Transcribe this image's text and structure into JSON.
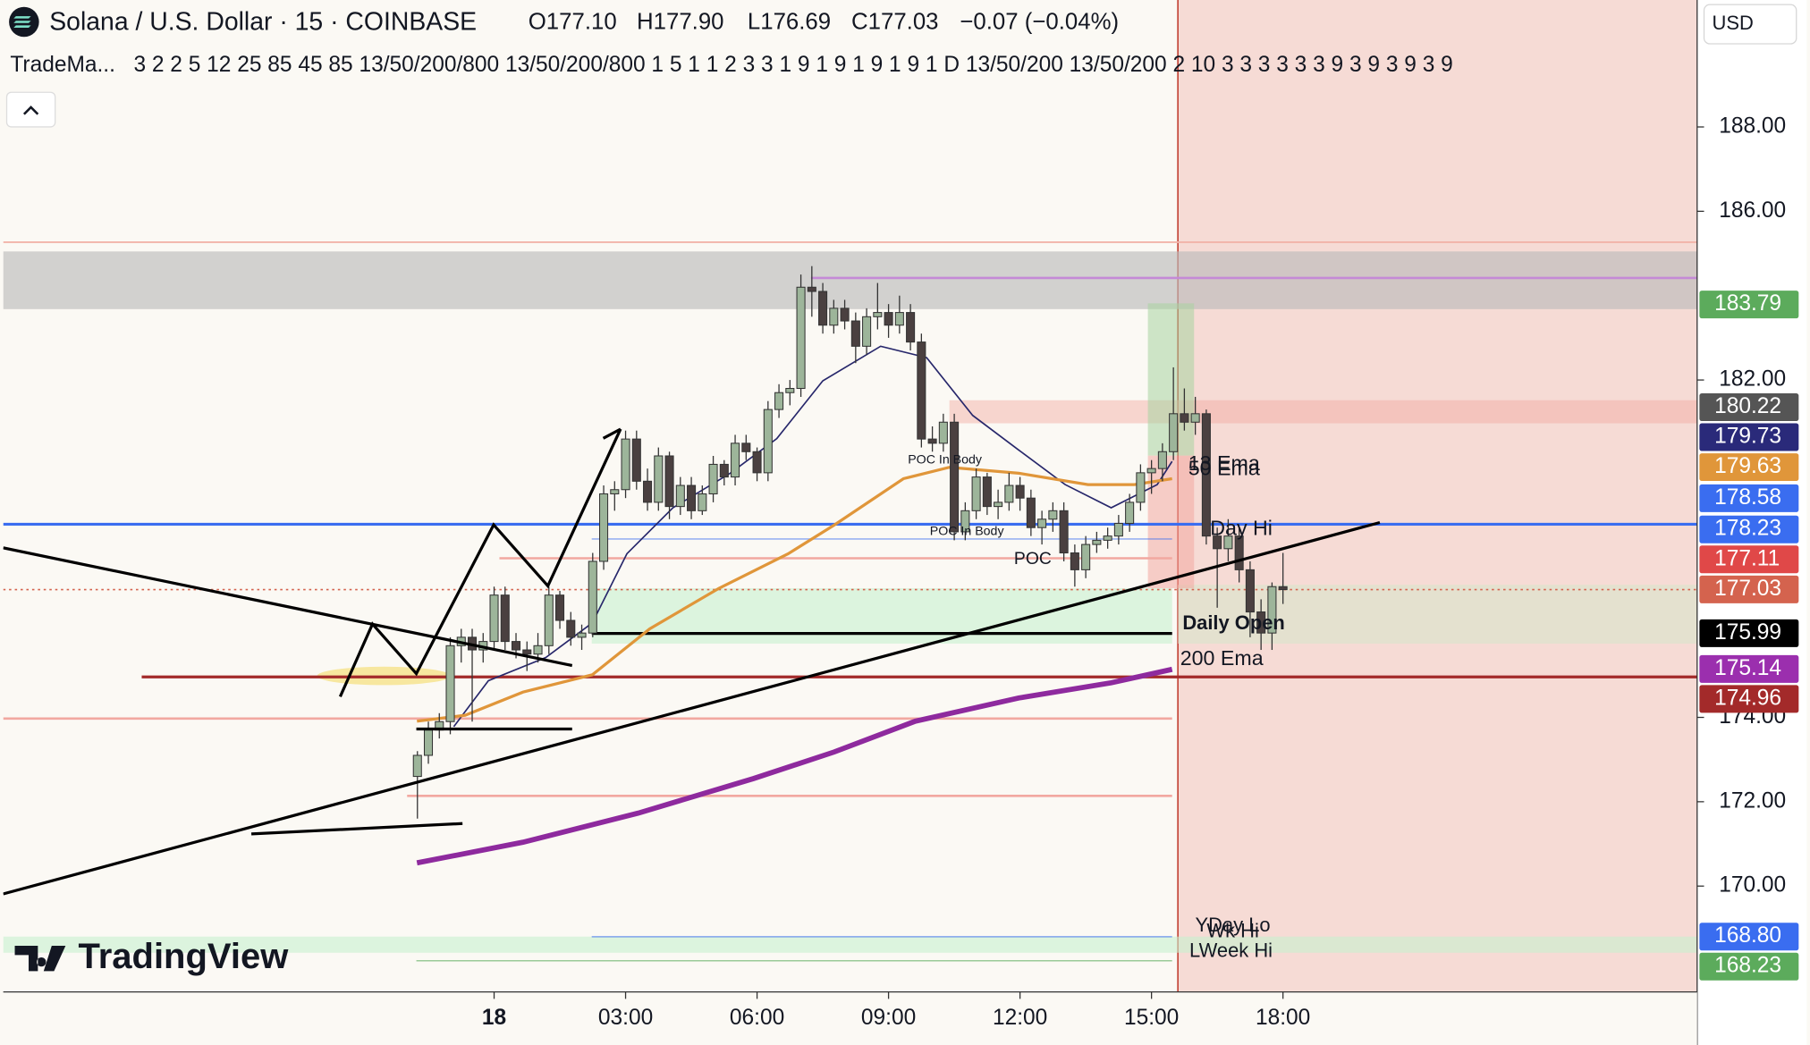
{
  "chart_data": {
    "type": "candlestick",
    "title": "Solana / U.S. Dollar · 15 · COINBASE",
    "ohlc": [
      "O177.10",
      "H177.90",
      "L176.69",
      "C177.03",
      "−0.07 (−0.04%)"
    ],
    "indicator_name": "TradeMa...",
    "indicator_params": "3 2 2 5 12 25 85 45 85 13/50/200/800 13/50/200/800 1 5 1 1 2 3 3 1 9 1 9 1 9 1 9 1 D 13/50/200 13/50/200 2 10 3 3 3 3 3 3 9 3 9 3 9 3 9",
    "currency": "USD",
    "watermark": "TradingView",
    "up_color": "#9db59a",
    "down_color": "#4a4040",
    "x": [
      -1.75,
      -1.5,
      -1.25,
      -1,
      -0.75,
      -0.5,
      -0.25,
      0,
      0.25,
      0.5,
      0.75,
      1,
      1.25,
      1.5,
      1.75,
      2,
      2.25,
      2.5,
      2.75,
      3,
      3.25,
      3.5,
      3.75,
      4,
      4.25,
      4.5,
      4.75,
      5,
      5.25,
      5.5,
      5.75,
      6,
      6.25,
      6.5,
      6.75,
      7,
      7.25,
      7.5,
      7.75,
      8,
      8.25,
      8.5,
      8.75,
      9,
      9.25,
      9.5,
      9.75,
      10,
      10.25,
      10.5,
      10.75,
      11,
      11.25,
      11.5,
      11.75,
      12,
      12.25,
      12.5,
      12.75,
      13,
      13.25,
      13.5,
      13.75,
      14,
      14.25,
      14.5,
      14.75,
      15,
      15.25,
      15.5,
      15.75,
      16,
      16.25,
      16.5,
      16.75,
      17,
      17.25,
      17.5,
      17.75,
      18
    ],
    "candles": [
      [
        172.6,
        173.2,
        171.6,
        173.1
      ],
      [
        173.1,
        173.9,
        172.9,
        173.7
      ],
      [
        173.7,
        174.1,
        173.5,
        173.9
      ],
      [
        173.9,
        175.9,
        173.6,
        175.7
      ],
      [
        175.7,
        176.1,
        175.3,
        175.9
      ],
      [
        175.9,
        176.1,
        173.9,
        175.6
      ],
      [
        175.6,
        176.0,
        175.3,
        175.8
      ],
      [
        175.8,
        177.1,
        175.6,
        176.9
      ],
      [
        176.9,
        177.1,
        175.6,
        175.8
      ],
      [
        175.8,
        176.0,
        175.4,
        175.6
      ],
      [
        175.6,
        175.8,
        175.1,
        175.5
      ],
      [
        175.5,
        176.0,
        175.3,
        175.7
      ],
      [
        175.7,
        177.1,
        175.5,
        176.9
      ],
      [
        176.9,
        177.0,
        176.1,
        176.3
      ],
      [
        176.3,
        176.5,
        175.7,
        175.9
      ],
      [
        175.9,
        176.2,
        175.6,
        176.0
      ],
      [
        176.0,
        177.9,
        175.9,
        177.7
      ],
      [
        177.7,
        179.5,
        177.5,
        179.3
      ],
      [
        179.3,
        179.6,
        178.9,
        179.4
      ],
      [
        179.4,
        180.8,
        179.2,
        180.6
      ],
      [
        180.6,
        180.8,
        179.4,
        179.6
      ],
      [
        179.6,
        179.9,
        178.9,
        179.1
      ],
      [
        179.1,
        180.4,
        178.9,
        180.2
      ],
      [
        180.2,
        180.3,
        178.7,
        179.0
      ],
      [
        179.0,
        179.7,
        178.8,
        179.5
      ],
      [
        179.5,
        179.7,
        178.7,
        178.9
      ],
      [
        178.9,
        179.5,
        178.8,
        179.3
      ],
      [
        179.3,
        180.2,
        179.1,
        180.0
      ],
      [
        180.0,
        180.1,
        179.5,
        179.7
      ],
      [
        179.7,
        180.7,
        179.5,
        180.5
      ],
      [
        180.5,
        180.7,
        180.1,
        180.3
      ],
      [
        180.3,
        180.4,
        179.6,
        179.8
      ],
      [
        179.8,
        181.5,
        179.6,
        181.3
      ],
      [
        181.3,
        181.9,
        181.1,
        181.7
      ],
      [
        181.7,
        182.0,
        181.4,
        181.8
      ],
      [
        181.8,
        184.5,
        181.6,
        184.2
      ],
      [
        184.2,
        184.7,
        183.5,
        184.1
      ],
      [
        184.1,
        184.3,
        183.1,
        183.3
      ],
      [
        183.3,
        183.9,
        183.1,
        183.7
      ],
      [
        183.7,
        183.9,
        183.2,
        183.4
      ],
      [
        183.4,
        183.6,
        182.4,
        182.8
      ],
      [
        182.8,
        183.7,
        182.6,
        183.5
      ],
      [
        183.5,
        184.3,
        183.2,
        183.6
      ],
      [
        183.6,
        183.8,
        183.0,
        183.3
      ],
      [
        183.3,
        184.0,
        183.1,
        183.6
      ],
      [
        183.6,
        183.8,
        182.7,
        182.9
      ],
      [
        182.9,
        183.1,
        180.4,
        180.6
      ],
      [
        180.6,
        180.9,
        180.3,
        180.5
      ],
      [
        180.5,
        181.2,
        180.3,
        181.0
      ],
      [
        181.0,
        181.2,
        178.2,
        178.4
      ],
      [
        178.4,
        179.1,
        178.2,
        178.9
      ],
      [
        178.9,
        179.9,
        178.7,
        179.7
      ],
      [
        179.7,
        179.8,
        178.8,
        179.0
      ],
      [
        179.0,
        179.4,
        178.7,
        179.1
      ],
      [
        179.1,
        179.8,
        178.9,
        179.5
      ],
      [
        179.5,
        179.7,
        178.9,
        179.2
      ],
      [
        179.2,
        179.4,
        178.3,
        178.5
      ],
      [
        178.5,
        178.9,
        178.1,
        178.7
      ],
      [
        178.7,
        179.1,
        178.4,
        178.9
      ],
      [
        178.9,
        179.1,
        177.7,
        177.9
      ],
      [
        177.9,
        178.1,
        177.1,
        177.5
      ],
      [
        177.5,
        178.3,
        177.3,
        178.1
      ],
      [
        178.1,
        178.4,
        177.9,
        178.2
      ],
      [
        178.2,
        178.5,
        178.0,
        178.3
      ],
      [
        178.3,
        178.8,
        178.1,
        178.6
      ],
      [
        178.6,
        179.3,
        178.4,
        179.1
      ],
      [
        179.1,
        180.0,
        178.9,
        179.8
      ],
      [
        179.8,
        180.1,
        179.3,
        179.9
      ],
      [
        179.9,
        180.5,
        179.6,
        180.3
      ],
      [
        180.3,
        182.3,
        180.1,
        181.2
      ],
      [
        181.2,
        181.8,
        180.8,
        181.0
      ],
      [
        181.0,
        181.6,
        180.7,
        181.2
      ],
      [
        181.2,
        181.3,
        178.1,
        178.3
      ],
      [
        178.3,
        178.5,
        176.6,
        178.0
      ],
      [
        178.0,
        178.7,
        177.7,
        178.3
      ],
      [
        178.3,
        178.5,
        177.2,
        177.5
      ],
      [
        177.5,
        177.7,
        175.9,
        176.5
      ],
      [
        176.5,
        176.8,
        175.6,
        176.0
      ],
      [
        176.0,
        177.2,
        175.6,
        177.1
      ],
      [
        177.1,
        177.9,
        176.69,
        177.03
      ]
    ],
    "series": [
      {
        "name": "13 Ema",
        "color": "#27276b",
        "x": [
          -0.92,
          -0.13,
          1.18,
          2.24,
          3.03,
          4.08,
          5.39,
          6.45,
          7.5,
          8.82,
          9.87,
          10.92,
          11.97,
          13.03,
          14.08,
          15.13,
          15.47
        ],
        "values": [
          173.78,
          174.87,
          175.42,
          176.24,
          177.88,
          178.97,
          179.79,
          180.61,
          181.98,
          182.8,
          182.53,
          181.16,
          180.34,
          179.52,
          178.97,
          179.52,
          180.07
        ]
      },
      {
        "name": "50 Ema",
        "color": "#e0963a",
        "x": [
          -1.76,
          -0.66,
          0.66,
          2.24,
          3.55,
          5.13,
          6.71,
          7.76,
          9.34,
          10.39,
          11.97,
          13.55,
          14.61,
          15.47
        ],
        "values": [
          173.91,
          174.05,
          174.6,
          175.01,
          176.1,
          177.06,
          177.88,
          178.56,
          179.66,
          179.93,
          179.79,
          179.52,
          179.52,
          179.66
        ]
      },
      {
        "name": "200 Ema",
        "color": "#8e2a9e",
        "x": [
          -1.76,
          0.66,
          3.29,
          5.92,
          7.76,
          9.61,
          11.97,
          14.08,
          15.47
        ],
        "values": [
          170.55,
          171.04,
          171.73,
          172.55,
          173.18,
          173.91,
          174.46,
          174.82,
          175.14
        ]
      }
    ],
    "price_tags": [
      {
        "value": 183.79,
        "color": "#5cab5c"
      },
      {
        "value": 180.22,
        "color": "#555555"
      },
      {
        "value": 179.73,
        "color": "#2a2a7a"
      },
      {
        "value": 179.63,
        "color": "#e0963a"
      },
      {
        "value": 178.58,
        "color": "#3a6df0"
      },
      {
        "value": 178.23,
        "color": "#3a6df0"
      },
      {
        "value": 177.11,
        "color": "#e04848"
      },
      {
        "value": 177.03,
        "color": "#d4634e"
      },
      {
        "value": 175.99,
        "color": "#000000"
      },
      {
        "value": 175.14,
        "color": "#9b2fae"
      },
      {
        "value": 174.96,
        "color": "#a32a2a"
      },
      {
        "value": 168.8,
        "label": "168.80",
        "color": "#3a6df0"
      },
      {
        "value": 168.23,
        "color": "#5cab5c"
      }
    ],
    "annotations": [
      "Day Hi",
      "POC In Body",
      "POC In Body",
      "POC",
      "Daily Open",
      "YDay Lo",
      "Wk Hi",
      "LWeek Hi"
    ],
    "xlim": [
      -11.2,
      27.45
    ],
    "ylim": [
      167.49,
      191.01
    ],
    "xticks": [
      {
        "value": 0,
        "label": "18"
      },
      {
        "value": 3,
        "label": "03:00"
      },
      {
        "value": 6,
        "label": "06:00"
      },
      {
        "value": 9,
        "label": "09:00"
      },
      {
        "value": 12,
        "label": "12:00"
      },
      {
        "value": 15,
        "label": "15:00"
      },
      {
        "value": 18,
        "label": "18:00"
      }
    ],
    "yticks": [
      {
        "value": 188,
        "label": "188.00"
      },
      {
        "value": 186,
        "label": "186.00"
      },
      {
        "value": 182,
        "label": "182.00"
      },
      {
        "value": 174,
        "label": "174.00"
      },
      {
        "value": 172,
        "label": "172.00"
      },
      {
        "value": 170,
        "label": "170.00"
      }
    ]
  }
}
